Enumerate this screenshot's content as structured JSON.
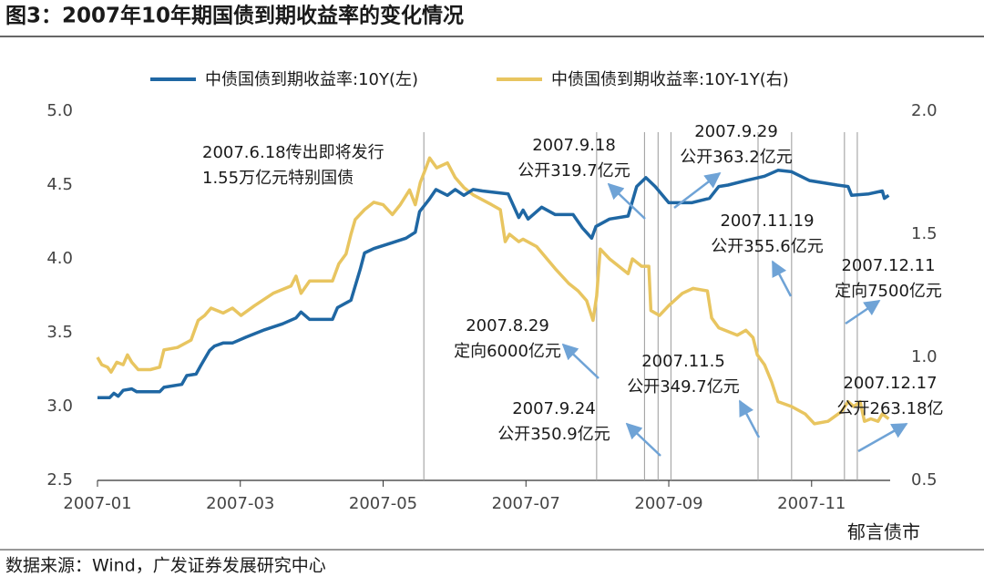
{
  "title": "图3：2007年10年期国债到期收益率的变化情况",
  "source": "数据来源：Wind，广发证券发展研究中心",
  "watermark": "郁言债市",
  "chart_data": {
    "type": "line",
    "xlim": [
      1,
      12.1
    ],
    "xticks": [
      {
        "value": 1,
        "label": "2007-01"
      },
      {
        "value": 3,
        "label": "2007-03"
      },
      {
        "value": 5,
        "label": "2007-05"
      },
      {
        "value": 7,
        "label": "2007-07"
      },
      {
        "value": 9,
        "label": "2007-09"
      },
      {
        "value": 11,
        "label": "2007-11"
      }
    ],
    "ylim": [
      2.5,
      5.0
    ],
    "yticks": [
      2.5,
      {
        "value": 3,
        "label": "3.0"
      },
      3.5,
      {
        "value": 4,
        "label": "4.0"
      },
      4.5,
      {
        "value": 5,
        "label": "5.0"
      }
    ],
    "y2lim": [
      0.5,
      2.0
    ],
    "y2ticks": [
      0.5,
      {
        "value": 1,
        "label": "1.0"
      },
      1.5,
      {
        "value": 2,
        "label": "2.0"
      }
    ],
    "event_lines": [
      5.57,
      7.99,
      8.66,
      8.85,
      9.03,
      10.25,
      10.72,
      11.46,
      11.64
    ],
    "annotations": [
      [
        "2007.6.18传出即将发行",
        "1.55万亿元特别国债"
      ],
      [
        "2007.9.18",
        "公开319.7亿元"
      ],
      [
        "2007.9.29",
        "公开363.2亿元"
      ],
      [
        "2007.11.19",
        "公开355.6亿元"
      ],
      [
        "2007.12.11",
        "定向7500亿元"
      ],
      [
        "2007.8.29",
        "定向6000亿元"
      ],
      [
        "2007.11.5",
        "公开349.7亿元"
      ],
      [
        "2007.9.24",
        "公开350.9亿元"
      ],
      [
        "2007.12.17",
        "公开263.18亿"
      ]
    ],
    "series": [
      {
        "name": "中债国债到期收益率:10Y(左)",
        "color": "#1f67a3",
        "x": [
          1.0,
          1.17,
          1.23,
          1.29,
          1.36,
          1.48,
          1.55,
          1.87,
          1.93,
          2.18,
          2.25,
          2.38,
          2.45,
          2.57,
          2.64,
          2.76,
          2.89,
          3.08,
          3.34,
          3.59,
          3.78,
          3.85,
          3.97,
          4.29,
          4.36,
          4.55,
          4.68,
          4.74,
          4.87,
          5.0,
          5.13,
          5.32,
          5.45,
          5.51,
          5.64,
          5.74,
          5.9,
          6.01,
          6.13,
          6.26,
          6.39,
          6.75,
          6.9,
          6.96,
          7.03,
          7.22,
          7.41,
          7.66,
          7.79,
          7.92,
          7.98,
          8.17,
          8.43,
          8.55,
          8.68,
          8.81,
          9.0,
          9.32,
          9.57,
          9.7,
          9.83,
          10.08,
          10.34,
          10.53,
          10.72,
          10.97,
          11.36,
          11.51,
          11.56,
          11.8,
          11.99,
          12.02,
          12.08
        ],
        "values": [
          3.06,
          3.06,
          3.09,
          3.07,
          3.11,
          3.12,
          3.1,
          3.1,
          3.13,
          3.15,
          3.21,
          3.22,
          3.28,
          3.38,
          3.41,
          3.43,
          3.43,
          3.47,
          3.52,
          3.56,
          3.6,
          3.64,
          3.59,
          3.59,
          3.67,
          3.72,
          3.93,
          4.04,
          4.07,
          4.09,
          4.11,
          4.14,
          4.18,
          4.32,
          4.4,
          4.47,
          4.43,
          4.47,
          4.43,
          4.47,
          4.46,
          4.44,
          4.28,
          4.33,
          4.27,
          4.35,
          4.3,
          4.3,
          4.21,
          4.14,
          4.22,
          4.27,
          4.29,
          4.49,
          4.55,
          4.49,
          4.38,
          4.38,
          4.41,
          4.49,
          4.5,
          4.53,
          4.56,
          4.6,
          4.59,
          4.53,
          4.5,
          4.49,
          4.43,
          4.44,
          4.46,
          4.41,
          4.43
        ]
      },
      {
        "name": "中债国债到期收益率:10Y-1Y(右)",
        "color": "#e8c560",
        "axis": "y2",
        "x": [
          1.0,
          1.06,
          1.14,
          1.19,
          1.27,
          1.36,
          1.42,
          1.48,
          1.57,
          1.74,
          1.87,
          1.93,
          2.12,
          2.31,
          2.41,
          2.5,
          2.59,
          2.76,
          2.89,
          3.01,
          3.2,
          3.46,
          3.71,
          3.78,
          3.85,
          3.97,
          4.29,
          4.38,
          4.48,
          4.55,
          4.61,
          4.74,
          4.87,
          5.0,
          5.13,
          5.24,
          5.37,
          5.45,
          5.52,
          5.6,
          5.65,
          5.75,
          5.9,
          6.01,
          6.13,
          6.26,
          6.52,
          6.64,
          6.71,
          6.77,
          6.9,
          6.96,
          7.15,
          7.41,
          7.6,
          7.73,
          7.85,
          7.94,
          7.99,
          8.04,
          8.17,
          8.3,
          8.43,
          8.49,
          8.62,
          8.72,
          8.75,
          8.87,
          9.0,
          9.19,
          9.34,
          9.54,
          9.6,
          9.7,
          9.96,
          10.08,
          10.18,
          10.24,
          10.34,
          10.44,
          10.53,
          10.72,
          10.91,
          11.04,
          11.23,
          11.42,
          11.51,
          11.59,
          11.68,
          11.74,
          11.83,
          11.93,
          11.99,
          12.08
        ],
        "values": [
          1.0,
          0.97,
          0.96,
          0.94,
          0.98,
          0.97,
          1.01,
          0.98,
          0.95,
          0.95,
          0.96,
          1.03,
          1.04,
          1.07,
          1.15,
          1.17,
          1.2,
          1.18,
          1.2,
          1.17,
          1.21,
          1.26,
          1.29,
          1.33,
          1.26,
          1.31,
          1.31,
          1.38,
          1.42,
          1.5,
          1.56,
          1.6,
          1.63,
          1.62,
          1.58,
          1.62,
          1.68,
          1.62,
          1.71,
          1.77,
          1.81,
          1.77,
          1.79,
          1.73,
          1.69,
          1.66,
          1.62,
          1.6,
          1.47,
          1.5,
          1.47,
          1.48,
          1.45,
          1.36,
          1.3,
          1.27,
          1.23,
          1.15,
          1.25,
          1.44,
          1.4,
          1.37,
          1.34,
          1.4,
          1.37,
          1.37,
          1.19,
          1.17,
          1.21,
          1.26,
          1.28,
          1.27,
          1.16,
          1.12,
          1.09,
          1.11,
          1.08,
          1.01,
          0.97,
          0.9,
          0.82,
          0.8,
          0.77,
          0.73,
          0.74,
          0.78,
          0.82,
          0.8,
          0.82,
          0.74,
          0.75,
          0.74,
          0.77,
          0.75
        ]
      }
    ]
  }
}
